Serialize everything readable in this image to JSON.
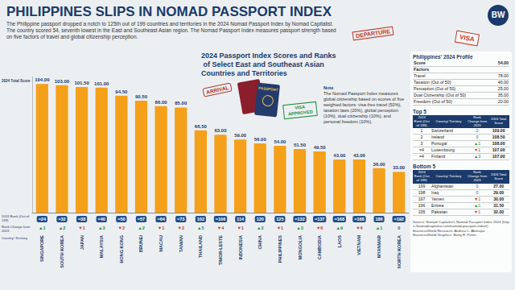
{
  "header": {
    "title": "PHILIPPINES SLIPS IN NOMAD PASSPORT INDEX",
    "subtitle": "The Philippine passport dropped a notch to 125th out of 199 countries and territories in the 2024 Nomad Passport Index by Nomad Capitalist. The country scored 54, seventh lowest in the East and Southeast Asian region. The Nomad Passport Index measures passport strength based on five factors of travel and global citizenship perception.",
    "logo": "BW"
  },
  "stickers": {
    "arrival": "ARRIVAL",
    "departure": "DEPARTURE",
    "passport": "PASSPORT",
    "visa_approved": "VISA APPROVED",
    "visa": "VISA"
  },
  "chart_data": {
    "type": "bar",
    "title": "2024 Passport Index Scores and Ranks of Select East and Southeast Asian Countries and Territories",
    "value_axis_label": "2024 Total Score",
    "categories": [
      "SINGAPORE",
      "SOUTH KOREA",
      "JAPAN",
      "MALAYSIA",
      "HONG KONG",
      "BRUNEI",
      "MACAU",
      "TAIWAN",
      "THAILAND",
      "TIMOR-LESTE",
      "INDONESIA",
      "CHINA",
      "PHILIPPINES",
      "MONGOLIA",
      "CAMBODIA",
      "LAOS",
      "VIETNAM",
      "MYANMAR",
      "NORTH KOREA"
    ],
    "values": [
      104,
      103,
      101.5,
      101,
      94.5,
      90.5,
      86,
      85,
      66.5,
      63,
      59,
      56,
      54,
      51.5,
      49.5,
      43,
      43,
      36,
      33
    ],
    "value_labels": [
      "104.00",
      "103.00",
      "101.50",
      "101.00",
      "94.50",
      "90.50",
      "86.00",
      "85.00",
      "66.50",
      "63.00",
      "59.00",
      "56.00",
      "54.00",
      "51.50",
      "49.50",
      "43.00",
      "43.00",
      "36.00",
      "33.00"
    ],
    "color": "#f5a01a",
    "ylim": [
      0,
      110
    ],
    "grid": false,
    "data_labels": true,
    "tick_labels": "x",
    "rows": {
      "rank_label": "2024 Rank (Out of 199)",
      "ranks": [
        "=24",
        "=32",
        "=38",
        "=40",
        "=50",
        "=57",
        "=64",
        "=73",
        "102",
        "=106",
        "114",
        "120",
        "125",
        "=132",
        "=137",
        "=168",
        "=168",
        "186",
        "=192"
      ],
      "change_label": "Rank Change from 2023",
      "changes": [
        "▲1",
        "▲2",
        "▼1",
        "▲3",
        "▼2",
        "▲2",
        "▼1",
        "▼2",
        "▲5",
        "▼4",
        "▼1",
        "▲2",
        "▼1",
        "▲3",
        "▼6",
        "▲9",
        "▼4",
        "▲1",
        "0"
      ],
      "category_label": "Country/ Territory"
    }
  },
  "note": {
    "title": "Note",
    "text": "The Nomad Passport Index measures global citizenship based on scores of five weighted factors: visa-free travel (50%), taxation laws (20%), global perception (10%), dual citizenship (10%), and personal freedom (10%)."
  },
  "profile": {
    "title": "Philippines' 2024 Profile",
    "score_label": "Score",
    "score": "54.00",
    "factors_label": "Factors",
    "factors": [
      [
        "Travel",
        "78.00"
      ],
      [
        "Taxation (Out of 50)",
        "40.00"
      ],
      [
        "Perception (Out of 50)",
        "25.00"
      ],
      [
        "Dual Citizenship (Out of 50)",
        "35.00"
      ],
      [
        "Freedom (Out of 50)",
        "20.00"
      ]
    ]
  },
  "top5": {
    "title": "Top 5",
    "columns": [
      "2024 Rank (Out of 199)",
      "Country/ Territory",
      "Rank Change from 2023",
      "2024 Total Score"
    ],
    "rows": [
      [
        "1",
        "Switzerland",
        "0",
        "109.00"
      ],
      [
        "2",
        "Ireland",
        "0",
        "108.50"
      ],
      [
        "3",
        "Portugal",
        "▲1",
        "108.00"
      ],
      [
        "=4",
        "Luxembourg",
        "▼1",
        "107.00"
      ],
      [
        "=4",
        "Finland",
        "▲3",
        "107.00"
      ]
    ]
  },
  "bottom5": {
    "title": "Bottom 5",
    "columns": [
      "2024 Rank (Out of 199)",
      "Country/ Territory",
      "Rank Change from 2023",
      "2024 Total Score"
    ],
    "rows": [
      [
        "199",
        "Afghanistan",
        "0",
        "27.00"
      ],
      [
        "198",
        "Iraq",
        "0",
        "29.00"
      ],
      [
        "197",
        "Yemen",
        "▼1",
        "30.00"
      ],
      [
        "196",
        "Eritrea",
        "▲1",
        "31.50"
      ],
      [
        "195",
        "Pakistan",
        "▼1",
        "32.00"
      ]
    ]
  },
  "source": [
    "Source: Nomad Capitalist's Nomad Passport Index 2024 (https://nomadcapitalist.com/nomad-passport-index/)",
    "BusinessWorld Research: Andrea C. Abenojar",
    "BusinessWorld Graphics: Bong R. Fortin"
  ]
}
